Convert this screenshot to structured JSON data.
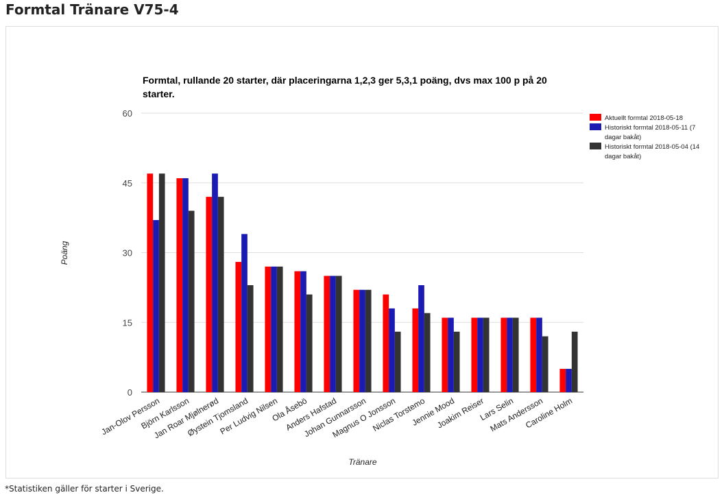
{
  "page": {
    "title": "Formtal Tränare V75-4",
    "footnote": "*Statistiken gäller för starter i Sverige."
  },
  "colors": {
    "series": [
      "#ff0000",
      "#1b1bb3",
      "#333333"
    ],
    "grid": "#dddddd",
    "baseline": "#333333"
  },
  "chart_data": {
    "type": "bar",
    "title": "Formtal, rullande 20 starter, där placeringarna 1,2,3 ger 5,3,1 poäng, dvs max 100 p på 20 starter.",
    "xlabel": "Tränare",
    "ylabel": "Poäng",
    "ylim": [
      0,
      60
    ],
    "yticks": [
      0,
      15,
      30,
      45,
      60
    ],
    "grid": true,
    "legend_position": "right",
    "categories": [
      "Jan-Olov Persson",
      "Björn Karlsson",
      "Jan Roar Mjølnerød",
      "Øystein Tjomsland",
      "Per Ludvig Nilsen",
      "Ola Åsebö",
      "Anders Hafstad",
      "Johan Gunnarsson",
      "Magnus O Jonsson",
      "Niclas Torstemo",
      "Jennie Mood",
      "Joakim Reiser",
      "Lars Selin",
      "Mats Andersson",
      "Caroline Holm"
    ],
    "series": [
      {
        "name": "Aktuellt formtal 2018-05-18",
        "values": [
          47,
          46,
          42,
          28,
          27,
          26,
          25,
          22,
          21,
          18,
          16,
          16,
          16,
          16,
          5
        ]
      },
      {
        "name": "Historiskt formtal 2018-05-11 (7 dagar bakåt)",
        "values": [
          37,
          46,
          47,
          34,
          27,
          26,
          25,
          22,
          18,
          23,
          16,
          16,
          16,
          16,
          5
        ]
      },
      {
        "name": "Historiskt formtal 2018-05-04 (14 dagar bakåt)",
        "values": [
          47,
          39,
          42,
          23,
          27,
          21,
          25,
          22,
          13,
          17,
          13,
          16,
          16,
          12,
          13
        ]
      }
    ]
  }
}
